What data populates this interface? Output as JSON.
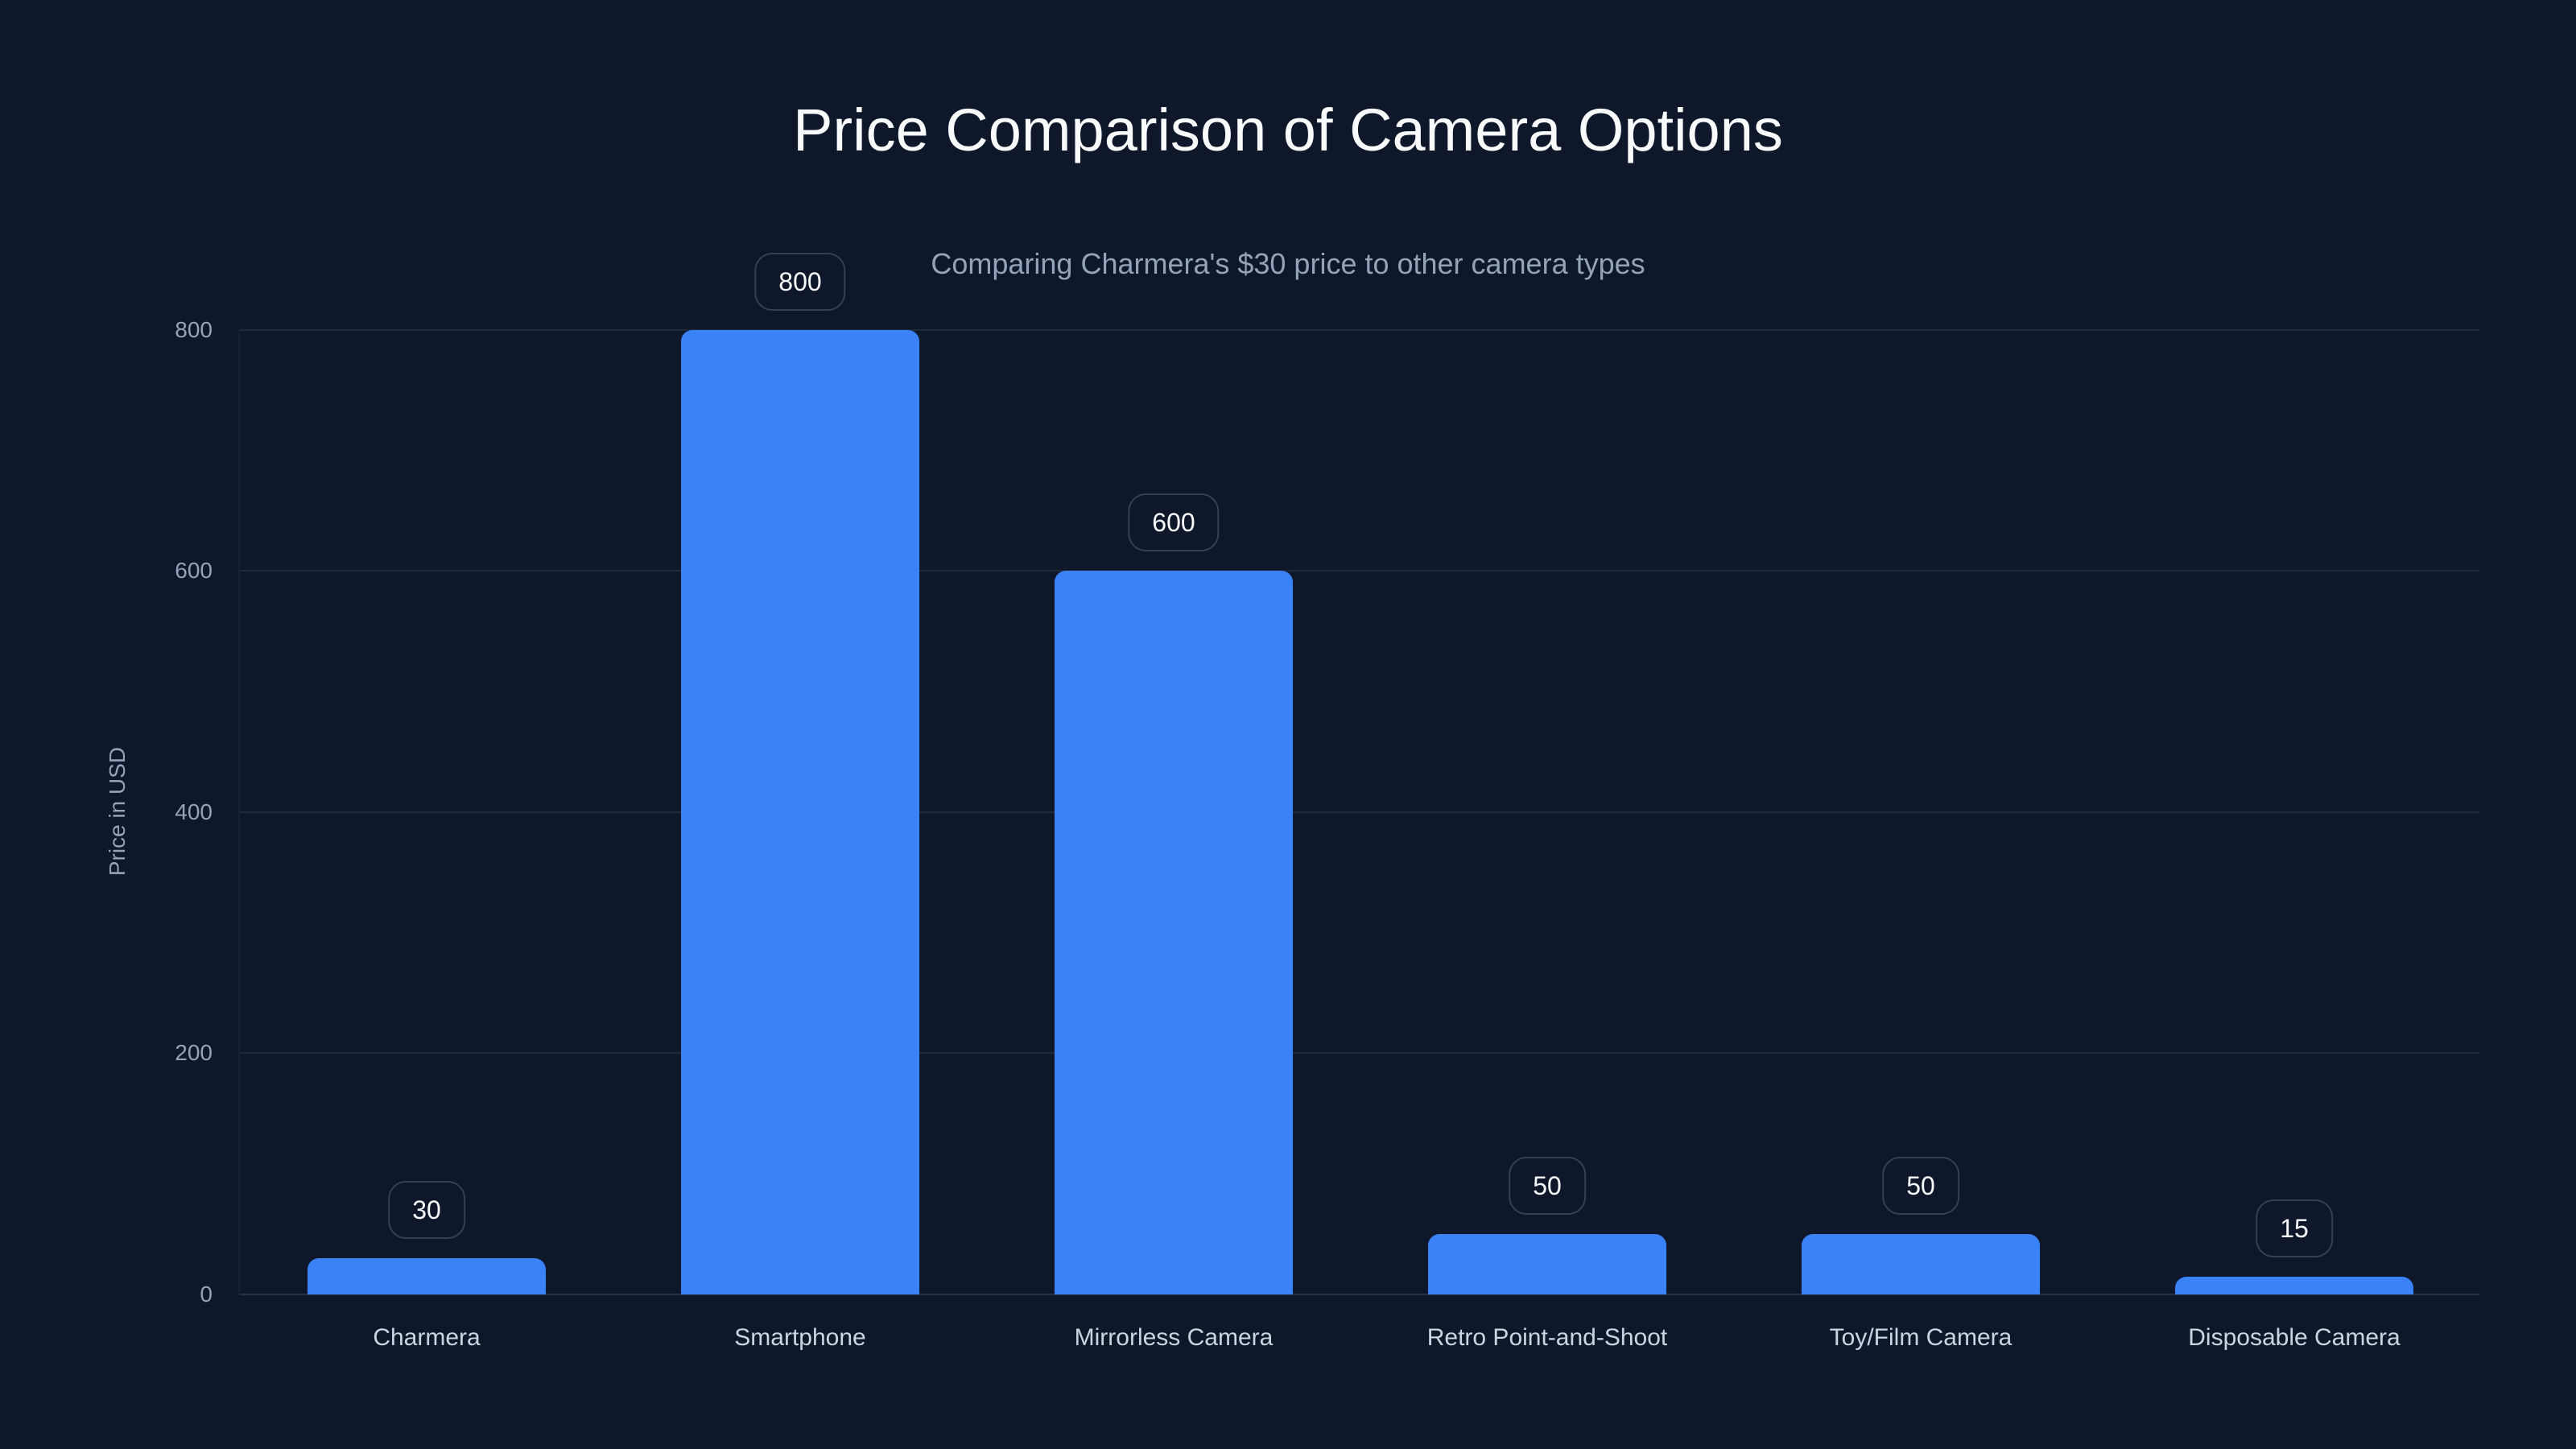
{
  "chart_data": {
    "type": "bar",
    "title": "Price Comparison of Camera Options",
    "subtitle": "Comparing Charmera's $30 price to other camera types",
    "xlabel": "",
    "ylabel": "Price in USD",
    "categories": [
      "Charmera",
      "Smartphone",
      "Mirrorless Camera",
      "Retro Point-and-Shoot",
      "Toy/Film Camera",
      "Disposable Camera"
    ],
    "values": [
      30,
      800,
      600,
      50,
      50,
      15
    ],
    "value_labels": [
      "30",
      "800",
      "600",
      "50",
      "50",
      "15"
    ],
    "ylim": [
      0,
      800
    ],
    "yticks": [
      "0",
      "200",
      "400",
      "600",
      "800"
    ],
    "grid": true,
    "legend": null,
    "colors": {
      "bar": "#3b82f6",
      "background": "#0f172a",
      "grid": "#1e293b"
    }
  }
}
